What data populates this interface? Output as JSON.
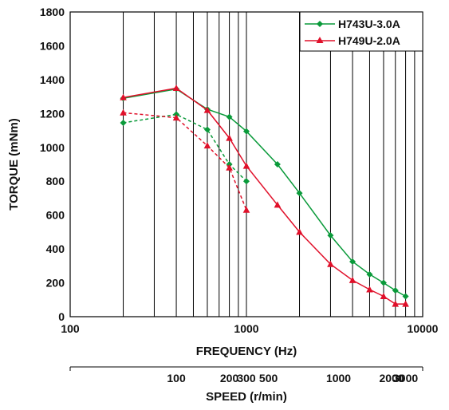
{
  "chart_data": {
    "type": "line",
    "xlabel": "FREQUENCY (Hz)",
    "ylabel": "TORQUE (mNm)",
    "x_scale": "log",
    "xlim": [
      100,
      10000
    ],
    "ylim": [
      0,
      1800
    ],
    "grid": "vertical",
    "legend_position": "top-right",
    "x_ticks": [
      "100",
      "1000",
      "10000"
    ],
    "y_ticks": [
      "0",
      "200",
      "400",
      "600",
      "800",
      "1000",
      "1200",
      "1400",
      "1600",
      "1800"
    ],
    "secondary_axis": {
      "label": "SPEED (r/min)",
      "ticks": [
        {
          "label": "100",
          "freq": 400
        },
        {
          "label": "200",
          "freq": 800
        },
        {
          "label": "300",
          "freq": 1000
        },
        {
          "label": "500",
          "freq": 1333
        },
        {
          "label": "1000",
          "freq": 3333
        },
        {
          "label": "2000",
          "freq": 6667
        },
        {
          "label": "3000",
          "freq": 8000
        }
      ]
    },
    "series": [
      {
        "name": "H743U-3.0A",
        "color": "#0a9a3a",
        "marker": "diamond",
        "style": "solid",
        "x": [
          200,
          400,
          600,
          800,
          1000,
          1500,
          2000,
          3000,
          4000,
          5000,
          6000,
          7000,
          8000
        ],
        "y": [
          1290,
          1345,
          1225,
          1180,
          1095,
          900,
          730,
          480,
          325,
          250,
          200,
          155,
          120
        ]
      },
      {
        "name": "H749U-2.0A",
        "color": "#e0102a",
        "marker": "triangle",
        "style": "solid",
        "x": [
          200,
          400,
          600,
          800,
          1000,
          1500,
          2000,
          3000,
          4000,
          5000,
          6000,
          7000,
          8000
        ],
        "y": [
          1295,
          1350,
          1220,
          1055,
          890,
          660,
          500,
          310,
          215,
          160,
          120,
          75,
          75
        ]
      },
      {
        "name": "",
        "color": "#0a9a3a",
        "marker": "diamond",
        "style": "dashed",
        "x": [
          200,
          400,
          600,
          800,
          1000
        ],
        "y": [
          1145,
          1195,
          1105,
          900,
          800
        ]
      },
      {
        "name": "",
        "color": "#e0102a",
        "marker": "triangle",
        "style": "dashed",
        "x": [
          200,
          400,
          600,
          800,
          1000
        ],
        "y": [
          1205,
          1175,
          1010,
          880,
          630
        ]
      }
    ]
  }
}
